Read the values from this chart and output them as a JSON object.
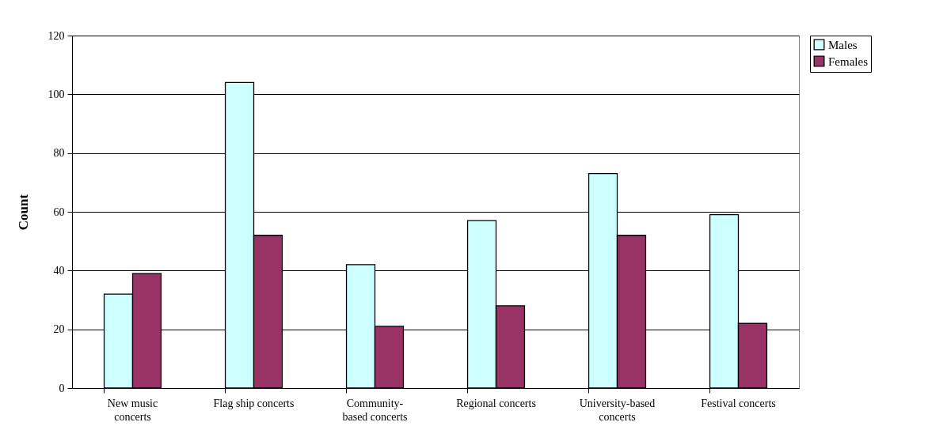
{
  "chart_data": {
    "type": "bar",
    "ylabel": "Count",
    "categories": [
      "New music\nconcerts",
      "Flag ship concerts",
      "Community-\nbased concerts",
      "Regional concerts",
      "University-based\nconcerts",
      "Festival concerts"
    ],
    "series": [
      {
        "name": "Males",
        "color": "#ccffff",
        "values": [
          32,
          104,
          42,
          57,
          73,
          59
        ]
      },
      {
        "name": "Females",
        "color": "#993366",
        "values": [
          39,
          52,
          21,
          28,
          52,
          22
        ]
      }
    ],
    "ylim": [
      0,
      120
    ],
    "yticks": [
      0,
      20,
      40,
      60,
      80,
      100,
      120
    ],
    "grid": "y",
    "legend": "right"
  }
}
